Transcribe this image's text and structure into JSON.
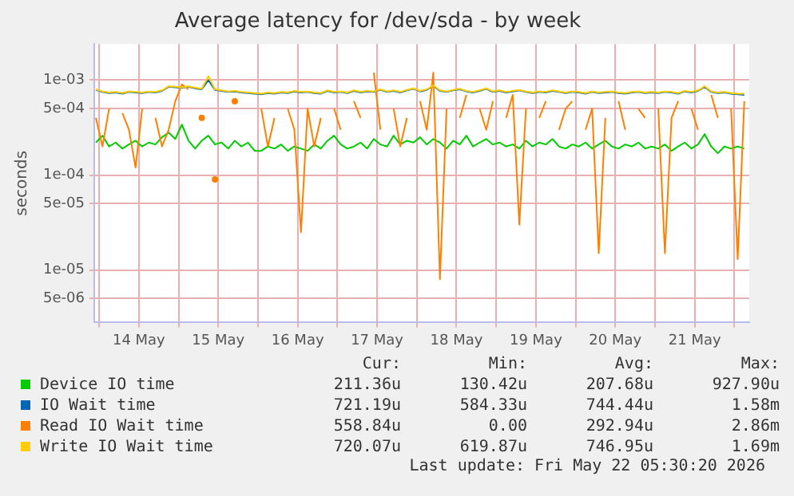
{
  "chart_data": {
    "type": "line",
    "title": "Average latency for /dev/sda - by week",
    "ylabel": "seconds",
    "log": "y",
    "grid": true,
    "legend": "bottom",
    "marker": "none",
    "line_style": "solid",
    "xlim": [
      "2026-05-13T22:30",
      "2026-05-22T04:30"
    ],
    "xticks": [
      {
        "value": "2026-05-14T00:00",
        "label": null
      },
      {
        "value": "2026-05-14T12:00",
        "label": "14 May"
      },
      {
        "value": "2026-05-15T00:00",
        "label": null
      },
      {
        "value": "2026-05-15T12:00",
        "label": "15 May"
      },
      {
        "value": "2026-05-16T00:00",
        "label": null
      },
      {
        "value": "2026-05-16T12:00",
        "label": "16 May"
      },
      {
        "value": "2026-05-17T00:00",
        "label": null
      },
      {
        "value": "2026-05-17T12:00",
        "label": "17 May"
      },
      {
        "value": "2026-05-18T00:00",
        "label": null
      },
      {
        "value": "2026-05-18T12:00",
        "label": "18 May"
      },
      {
        "value": "2026-05-19T00:00",
        "label": null
      },
      {
        "value": "2026-05-19T12:00",
        "label": "19 May"
      },
      {
        "value": "2026-05-20T00:00",
        "label": null
      },
      {
        "value": "2026-05-20T12:00",
        "label": "20 May"
      },
      {
        "value": "2026-05-21T00:00",
        "label": null
      },
      {
        "value": "2026-05-21T12:00",
        "label": "21 May"
      },
      {
        "value": "2026-05-22T00:00",
        "label": null
      }
    ],
    "ylim": [
      2.8e-06,
      0.0024
    ],
    "yticks": [
      {
        "value": 5e-06,
        "label": "5e-06"
      },
      {
        "value": 1e-05,
        "label": "1e-05"
      },
      {
        "value": 5e-05,
        "label": "5e-05"
      },
      {
        "value": 0.0001,
        "label": "1e-04"
      },
      {
        "value": 0.0005,
        "label": "5e-04"
      },
      {
        "value": 0.001,
        "label": "1e-03"
      }
    ],
    "x": [
      "2026-05-13T23:00",
      "2026-05-14T01:00",
      "2026-05-14T03:00",
      "2026-05-14T05:00",
      "2026-05-14T07:00",
      "2026-05-14T09:00",
      "2026-05-14T11:00",
      "2026-05-14T13:00",
      "2026-05-14T15:00",
      "2026-05-14T17:00",
      "2026-05-14T19:00",
      "2026-05-14T21:00",
      "2026-05-14T23:00",
      "2026-05-15T01:00",
      "2026-05-15T03:00",
      "2026-05-15T05:00",
      "2026-05-15T07:00",
      "2026-05-15T09:00",
      "2026-05-15T11:00",
      "2026-05-15T13:00",
      "2026-05-15T15:00",
      "2026-05-15T17:00",
      "2026-05-15T19:00",
      "2026-05-15T21:00",
      "2026-05-15T23:00",
      "2026-05-16T01:00",
      "2026-05-16T03:00",
      "2026-05-16T05:00",
      "2026-05-16T07:00",
      "2026-05-16T09:00",
      "2026-05-16T11:00",
      "2026-05-16T13:00",
      "2026-05-16T15:00",
      "2026-05-16T17:00",
      "2026-05-16T19:00",
      "2026-05-16T21:00",
      "2026-05-16T23:00",
      "2026-05-17T01:00",
      "2026-05-17T03:00",
      "2026-05-17T05:00",
      "2026-05-17T07:00",
      "2026-05-17T09:00",
      "2026-05-17T11:00",
      "2026-05-17T13:00",
      "2026-05-17T15:00",
      "2026-05-17T17:00",
      "2026-05-17T19:00",
      "2026-05-17T21:00",
      "2026-05-17T23:00",
      "2026-05-18T01:00",
      "2026-05-18T03:00",
      "2026-05-18T05:00",
      "2026-05-18T07:00",
      "2026-05-18T09:00",
      "2026-05-18T11:00",
      "2026-05-18T13:00",
      "2026-05-18T15:00",
      "2026-05-18T17:00",
      "2026-05-18T19:00",
      "2026-05-18T21:00",
      "2026-05-18T23:00",
      "2026-05-19T01:00",
      "2026-05-19T03:00",
      "2026-05-19T05:00",
      "2026-05-19T07:00",
      "2026-05-19T09:00",
      "2026-05-19T11:00",
      "2026-05-19T13:00",
      "2026-05-19T15:00",
      "2026-05-19T17:00",
      "2026-05-19T19:00",
      "2026-05-19T21:00",
      "2026-05-19T23:00",
      "2026-05-20T01:00",
      "2026-05-20T03:00",
      "2026-05-20T05:00",
      "2026-05-20T07:00",
      "2026-05-20T09:00",
      "2026-05-20T11:00",
      "2026-05-20T13:00",
      "2026-05-20T15:00",
      "2026-05-20T17:00",
      "2026-05-20T19:00",
      "2026-05-20T21:00",
      "2026-05-20T23:00",
      "2026-05-21T01:00",
      "2026-05-21T03:00",
      "2026-05-21T05:00",
      "2026-05-21T07:00",
      "2026-05-21T09:00",
      "2026-05-21T11:00",
      "2026-05-21T13:00",
      "2026-05-21T15:00",
      "2026-05-21T17:00",
      "2026-05-21T19:00",
      "2026-05-21T21:00",
      "2026-05-21T23:00",
      "2026-05-22T01:00",
      "2026-05-22T03:00"
    ],
    "series": [
      {
        "name": "Device IO time",
        "color": "#00cc00",
        "values": [
          0.00022,
          0.00026,
          0.0002,
          0.00022,
          0.00019,
          0.00021,
          0.00023,
          0.0002,
          0.00022,
          0.00021,
          0.00025,
          0.00028,
          0.00024,
          0.00034,
          0.00023,
          0.00019,
          0.00023,
          0.00026,
          0.00021,
          0.00022,
          0.00019,
          0.00023,
          0.0002,
          0.00022,
          0.00018,
          0.00018,
          0.0002,
          0.00019,
          0.00021,
          0.00018,
          0.0002,
          0.00019,
          0.00018,
          0.00021,
          0.00019,
          0.00023,
          0.00026,
          0.00021,
          0.00019,
          0.0002,
          0.00022,
          0.00019,
          0.00024,
          0.00021,
          0.0002,
          0.00026,
          0.00021,
          0.00023,
          0.00022,
          0.00025,
          0.00021,
          0.00024,
          0.00022,
          0.00019,
          0.00023,
          0.00021,
          0.00026,
          0.0002,
          0.00022,
          0.00024,
          0.00021,
          0.00022,
          0.0002,
          0.00021,
          0.00019,
          0.00023,
          0.0002,
          0.00022,
          0.00021,
          0.00024,
          0.0002,
          0.00019,
          0.00021,
          0.0002,
          0.00022,
          0.00019,
          0.00021,
          0.00023,
          0.0002,
          0.00019,
          0.00021,
          0.0002,
          0.00022,
          0.00019,
          0.0002,
          0.00019,
          0.00021,
          0.00018,
          0.0002,
          0.00022,
          0.00019,
          0.00021,
          0.00027,
          0.0002,
          0.00017,
          0.0002,
          0.00019,
          0.0002,
          0.00019
        ]
      },
      {
        "name": "IO Wait time",
        "color": "#0066b3",
        "values": [
          0.00079,
          0.00075,
          0.00073,
          0.00074,
          0.00072,
          0.00075,
          0.00074,
          0.00073,
          0.00075,
          0.00074,
          0.00077,
          0.00085,
          0.00084,
          0.00083,
          0.00085,
          0.00082,
          0.0008,
          0.001,
          0.00079,
          0.00077,
          0.00075,
          0.00076,
          0.00074,
          0.00073,
          0.00072,
          0.00071,
          0.00073,
          0.00072,
          0.00074,
          0.00073,
          0.00076,
          0.00074,
          0.00075,
          0.00073,
          0.00072,
          0.00077,
          0.00074,
          0.00075,
          0.00073,
          0.00077,
          0.00074,
          0.00076,
          0.00075,
          0.00079,
          0.00075,
          0.00077,
          0.00074,
          0.00078,
          0.00081,
          0.00076,
          0.00079,
          0.00087,
          0.00077,
          0.00075,
          0.00078,
          0.0008,
          0.00076,
          0.00074,
          0.00077,
          0.00081,
          0.00075,
          0.00077,
          0.00074,
          0.00076,
          0.00078,
          0.00075,
          0.00073,
          0.00075,
          0.00074,
          0.00077,
          0.00075,
          0.00073,
          0.00075,
          0.00074,
          0.00072,
          0.00075,
          0.00073,
          0.00074,
          0.00075,
          0.00073,
          0.00072,
          0.00074,
          0.00075,
          0.00073,
          0.00074,
          0.00073,
          0.00075,
          0.00074,
          0.00072,
          0.00076,
          0.00074,
          0.00077,
          0.00085,
          0.00075,
          0.00073,
          0.00074,
          0.00072,
          0.00071,
          0.0007
        ]
      },
      {
        "name": "Read IO Wait time",
        "color": "#ff8000",
        "values": [
          0.0004,
          0.0002,
          0.0005,
          null,
          0.00045,
          0.0003,
          0.00012,
          0.0005,
          null,
          0.0004,
          0.0002,
          0.0003,
          0.0006,
          0.0009,
          0.0008,
          null,
          0.0004,
          null,
          9e-05,
          null,
          null,
          0.0006,
          null,
          null,
          null,
          0.0005,
          0.0002,
          0.0004,
          null,
          0.0005,
          0.0003,
          2.5e-05,
          0.0005,
          0.0002,
          0.0004,
          null,
          0.0005,
          0.0003,
          null,
          0.0006,
          0.0004,
          null,
          0.0012,
          0.0003,
          null,
          0.0005,
          0.0002,
          0.0004,
          null,
          0.0006,
          0.0003,
          0.0012,
          8e-06,
          0.0005,
          null,
          0.0004,
          0.0007,
          null,
          0.0005,
          0.0003,
          0.0006,
          null,
          0.0004,
          0.0007,
          3e-05,
          0.0005,
          null,
          0.0004,
          0.0006,
          null,
          0.0003,
          0.0005,
          0.0006,
          null,
          0.0003,
          0.0005,
          1.5e-05,
          0.0004,
          null,
          0.0006,
          0.0003,
          null,
          0.0005,
          0.0004,
          null,
          0.0005,
          1.5e-05,
          0.0004,
          0.0006,
          null,
          0.0005,
          0.0003,
          null,
          0.0007,
          0.0004,
          null,
          0.0005,
          1.3e-05,
          0.0006
        ]
      },
      {
        "name": "Write IO Wait time",
        "color": "#ffcc00",
        "values": [
          0.0008,
          0.00076,
          0.00074,
          0.00075,
          0.00073,
          0.00076,
          0.00075,
          0.00074,
          0.00076,
          0.00075,
          0.00078,
          0.00086,
          0.00085,
          0.00084,
          0.00086,
          0.00083,
          0.00081,
          0.0011,
          0.0008,
          0.00078,
          0.00076,
          0.00077,
          0.00075,
          0.00074,
          0.00073,
          0.00072,
          0.00074,
          0.00073,
          0.00075,
          0.00074,
          0.00077,
          0.00075,
          0.00076,
          0.00074,
          0.00073,
          0.00078,
          0.00075,
          0.00076,
          0.00074,
          0.00078,
          0.00075,
          0.00077,
          0.00076,
          0.0008,
          0.00076,
          0.00078,
          0.00075,
          0.00079,
          0.00082,
          0.00077,
          0.0008,
          0.00088,
          0.00078,
          0.00076,
          0.00079,
          0.00081,
          0.00077,
          0.00075,
          0.00078,
          0.00082,
          0.00076,
          0.00078,
          0.00075,
          0.00077,
          0.00079,
          0.00076,
          0.00074,
          0.00076,
          0.00075,
          0.00078,
          0.00076,
          0.00074,
          0.00076,
          0.00075,
          0.00073,
          0.00076,
          0.00074,
          0.00075,
          0.00076,
          0.00074,
          0.00073,
          0.00075,
          0.00076,
          0.00074,
          0.00075,
          0.00074,
          0.00076,
          0.00075,
          0.00073,
          0.00077,
          0.00075,
          0.00078,
          0.00086,
          0.00076,
          0.00074,
          0.00075,
          0.00073,
          0.00072,
          0.00072
        ]
      }
    ],
    "annotations": [
      "Cur:",
      "Min:",
      "Avg:",
      "Max:",
      "211.36u",
      "130.42u",
      "207.68u",
      "927.90u",
      "721.19u",
      "584.33u",
      "744.44u",
      "1.58m",
      "558.84u",
      "0.00",
      "292.94u",
      "2.86m",
      "720.07u",
      "619.87u",
      "746.95u",
      "1.69m",
      "Last update: Fri May 22 05:30:20 2026"
    ]
  }
}
